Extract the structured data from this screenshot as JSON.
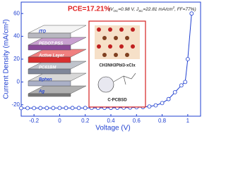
{
  "chart_data": {
    "type": "line",
    "x_label": "Voltage (V)",
    "y_label": "Current Density (mA/cm²)",
    "annotation": "PCE=17.21%",
    "annotation_detail": [
      "(V",
      "OC",
      "=0.98 V, J",
      "SC",
      "=22.81 mA/cm",
      "2",
      ", FF=77%)"
    ],
    "x": [
      -0.3,
      -0.25,
      -0.2,
      -0.15,
      -0.1,
      -0.05,
      0.0,
      0.05,
      0.1,
      0.15,
      0.2,
      0.25,
      0.3,
      0.35,
      0.4,
      0.45,
      0.5,
      0.55,
      0.6,
      0.65,
      0.7,
      0.75,
      0.8,
      0.85,
      0.9,
      0.95,
      0.98,
      1.0,
      1.03
    ],
    "series": [
      {
        "color": "#1f3fd0",
        "values": [
          -22.9,
          -22.9,
          -22.9,
          -22.85,
          -22.85,
          -22.85,
          -22.81,
          -22.8,
          -22.8,
          -22.8,
          -22.8,
          -22.75,
          -22.75,
          -22.7,
          -22.7,
          -22.6,
          -22.5,
          -22.4,
          -22.2,
          -22,
          -21.5,
          -20.5,
          -18.5,
          -15,
          -9,
          -3,
          0,
          20,
          60
        ]
      }
    ],
    "xlim": [
      -0.3,
      1.1
    ],
    "xticks": [
      -0.2,
      0.0,
      0.2,
      0.4,
      0.6,
      0.8,
      1.0
    ],
    "ylim": [
      -30,
      70
    ],
    "yticks": [
      -20,
      0,
      20,
      40,
      60
    ]
  },
  "inset": {
    "layers": [
      "ITO",
      "PEDOT:PSS",
      "Active Layer",
      "PC61BM",
      "Bphen",
      "Ag"
    ],
    "perovskite": "CH3NH3PbI3-xClx",
    "fullerene": "C-PCBSD"
  }
}
